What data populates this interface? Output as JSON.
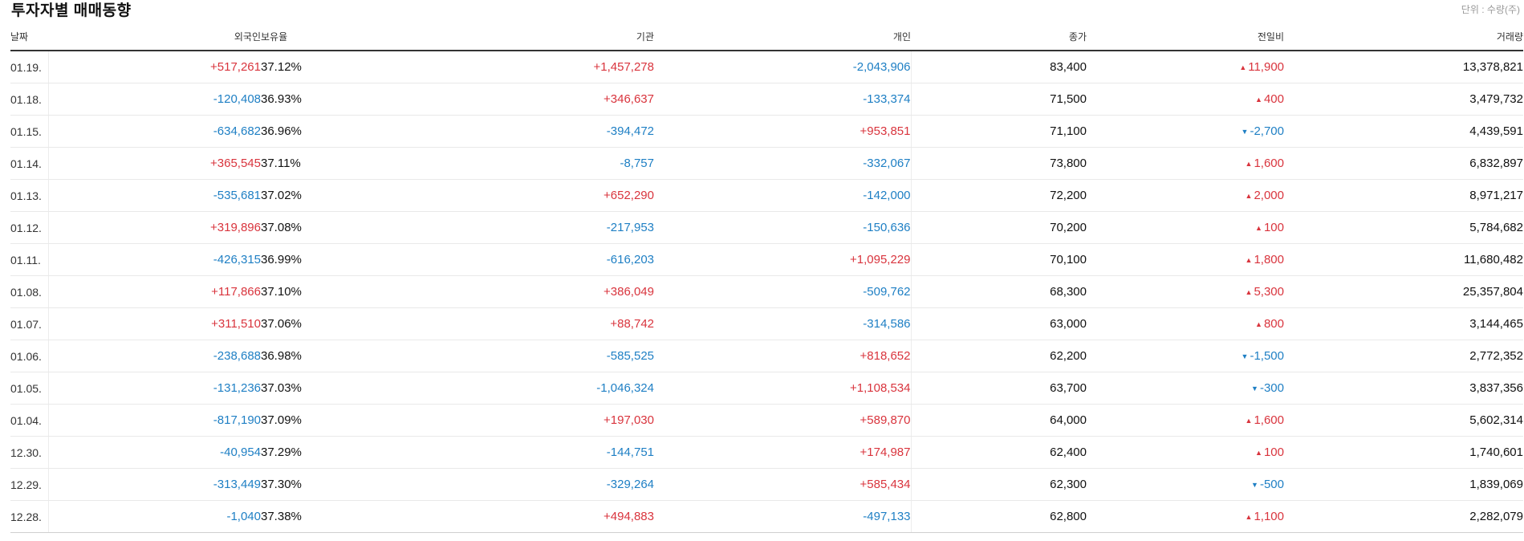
{
  "title": "투자자별 매매동향",
  "unit": "단위 : 수량(주)",
  "colors": {
    "up": "#d9343d",
    "down": "#1e7fc4"
  },
  "headers": {
    "date": "날짜",
    "foreign": "외국인",
    "ratio": "보유율",
    "institution": "기관",
    "individual": "개인",
    "close": "종가",
    "change": "전일비",
    "volume": "거래량"
  },
  "rows": [
    {
      "date": "01.19.",
      "foreign": "+517,261",
      "ratio": "37.12%",
      "institution": "+1,457,278",
      "individual": "-2,043,906",
      "close": "83,400",
      "change": "11,900",
      "change_dir": "up",
      "volume": "13,378,821"
    },
    {
      "date": "01.18.",
      "foreign": "-120,408",
      "ratio": "36.93%",
      "institution": "+346,637",
      "individual": "-133,374",
      "close": "71,500",
      "change": "400",
      "change_dir": "up",
      "volume": "3,479,732"
    },
    {
      "date": "01.15.",
      "foreign": "-634,682",
      "ratio": "36.96%",
      "institution": "-394,472",
      "individual": "+953,851",
      "close": "71,100",
      "change": "-2,700",
      "change_dir": "down",
      "volume": "4,439,591"
    },
    {
      "date": "01.14.",
      "foreign": "+365,545",
      "ratio": "37.11%",
      "institution": "-8,757",
      "individual": "-332,067",
      "close": "73,800",
      "change": "1,600",
      "change_dir": "up",
      "volume": "6,832,897"
    },
    {
      "date": "01.13.",
      "foreign": "-535,681",
      "ratio": "37.02%",
      "institution": "+652,290",
      "individual": "-142,000",
      "close": "72,200",
      "change": "2,000",
      "change_dir": "up",
      "volume": "8,971,217"
    },
    {
      "date": "01.12.",
      "foreign": "+319,896",
      "ratio": "37.08%",
      "institution": "-217,953",
      "individual": "-150,636",
      "close": "70,200",
      "change": "100",
      "change_dir": "up",
      "volume": "5,784,682"
    },
    {
      "date": "01.11.",
      "foreign": "-426,315",
      "ratio": "36.99%",
      "institution": "-616,203",
      "individual": "+1,095,229",
      "close": "70,100",
      "change": "1,800",
      "change_dir": "up",
      "volume": "11,680,482"
    },
    {
      "date": "01.08.",
      "foreign": "+117,866",
      "ratio": "37.10%",
      "institution": "+386,049",
      "individual": "-509,762",
      "close": "68,300",
      "change": "5,300",
      "change_dir": "up",
      "volume": "25,357,804"
    },
    {
      "date": "01.07.",
      "foreign": "+311,510",
      "ratio": "37.06%",
      "institution": "+88,742",
      "individual": "-314,586",
      "close": "63,000",
      "change": "800",
      "change_dir": "up",
      "volume": "3,144,465"
    },
    {
      "date": "01.06.",
      "foreign": "-238,688",
      "ratio": "36.98%",
      "institution": "-585,525",
      "individual": "+818,652",
      "close": "62,200",
      "change": "-1,500",
      "change_dir": "down",
      "volume": "2,772,352"
    },
    {
      "date": "01.05.",
      "foreign": "-131,236",
      "ratio": "37.03%",
      "institution": "-1,046,324",
      "individual": "+1,108,534",
      "close": "63,700",
      "change": "-300",
      "change_dir": "down",
      "volume": "3,837,356"
    },
    {
      "date": "01.04.",
      "foreign": "-817,190",
      "ratio": "37.09%",
      "institution": "+197,030",
      "individual": "+589,870",
      "close": "64,000",
      "change": "1,600",
      "change_dir": "up",
      "volume": "5,602,314"
    },
    {
      "date": "12.30.",
      "foreign": "-40,954",
      "ratio": "37.29%",
      "institution": "-144,751",
      "individual": "+174,987",
      "close": "62,400",
      "change": "100",
      "change_dir": "up",
      "volume": "1,740,601"
    },
    {
      "date": "12.29.",
      "foreign": "-313,449",
      "ratio": "37.30%",
      "institution": "-329,264",
      "individual": "+585,434",
      "close": "62,300",
      "change": "-500",
      "change_dir": "down",
      "volume": "1,839,069"
    },
    {
      "date": "12.28.",
      "foreign": "-1,040",
      "ratio": "37.38%",
      "institution": "+494,883",
      "individual": "-497,133",
      "close": "62,800",
      "change": "1,100",
      "change_dir": "up",
      "volume": "2,282,079"
    }
  ]
}
